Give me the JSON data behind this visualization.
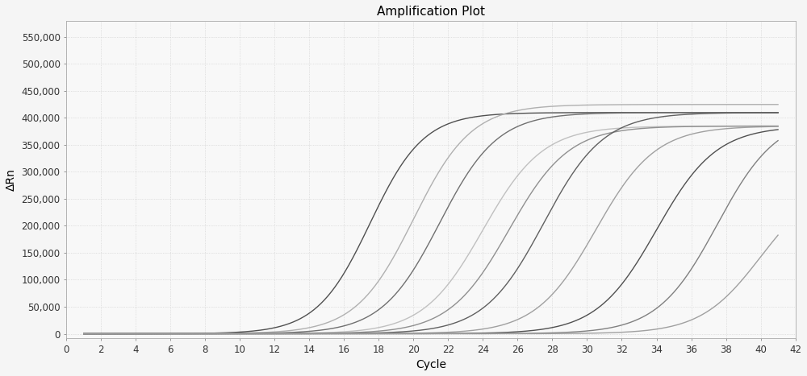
{
  "title": "Amplification Plot",
  "xlabel": "Cycle",
  "ylabel": "ΔRn",
  "xlim": [
    0,
    42
  ],
  "ylim": [
    -8000,
    580000
  ],
  "xticks": [
    0,
    2,
    4,
    6,
    8,
    10,
    12,
    14,
    16,
    18,
    20,
    22,
    24,
    26,
    28,
    30,
    32,
    34,
    36,
    38,
    40,
    42
  ],
  "yticks": [
    0,
    50000,
    100000,
    150000,
    200000,
    250000,
    300000,
    350000,
    400000,
    450000,
    500000,
    550000
  ],
  "ytick_labels": [
    "0",
    "50,000",
    "100,000",
    "150,000",
    "200,000",
    "250,000",
    "300,000",
    "350,000",
    "400,000",
    "450,000",
    "500,000",
    "550,000"
  ],
  "background_color": "#f5f5f5",
  "plot_bg_color": "#f8f8f8",
  "grid_color": "#cccccc",
  "curves": [
    {
      "ct": 17.5,
      "plateau": 410000,
      "slope": 0.65,
      "color": "#505050",
      "lw": 1.0
    },
    {
      "ct": 20.0,
      "plateau": 425000,
      "slope": 0.6,
      "color": "#b0b0b0",
      "lw": 1.0
    },
    {
      "ct": 21.5,
      "plateau": 410000,
      "slope": 0.6,
      "color": "#707070",
      "lw": 1.0
    },
    {
      "ct": 24.0,
      "plateau": 385000,
      "slope": 0.58,
      "color": "#c0c0c0",
      "lw": 1.0
    },
    {
      "ct": 25.5,
      "plateau": 385000,
      "slope": 0.58,
      "color": "#909090",
      "lw": 1.0
    },
    {
      "ct": 27.5,
      "plateau": 410000,
      "slope": 0.58,
      "color": "#606060",
      "lw": 1.0
    },
    {
      "ct": 30.5,
      "plateau": 385000,
      "slope": 0.58,
      "color": "#a0a0a0",
      "lw": 1.0
    },
    {
      "ct": 34.0,
      "plateau": 385000,
      "slope": 0.58,
      "color": "#505050",
      "lw": 1.0
    },
    {
      "ct": 37.5,
      "plateau": 405000,
      "slope": 0.58,
      "color": "#808080",
      "lw": 1.0
    },
    {
      "ct": 40.0,
      "plateau": 285000,
      "slope": 0.58,
      "color": "#a0a0a0",
      "lw": 1.0
    }
  ]
}
